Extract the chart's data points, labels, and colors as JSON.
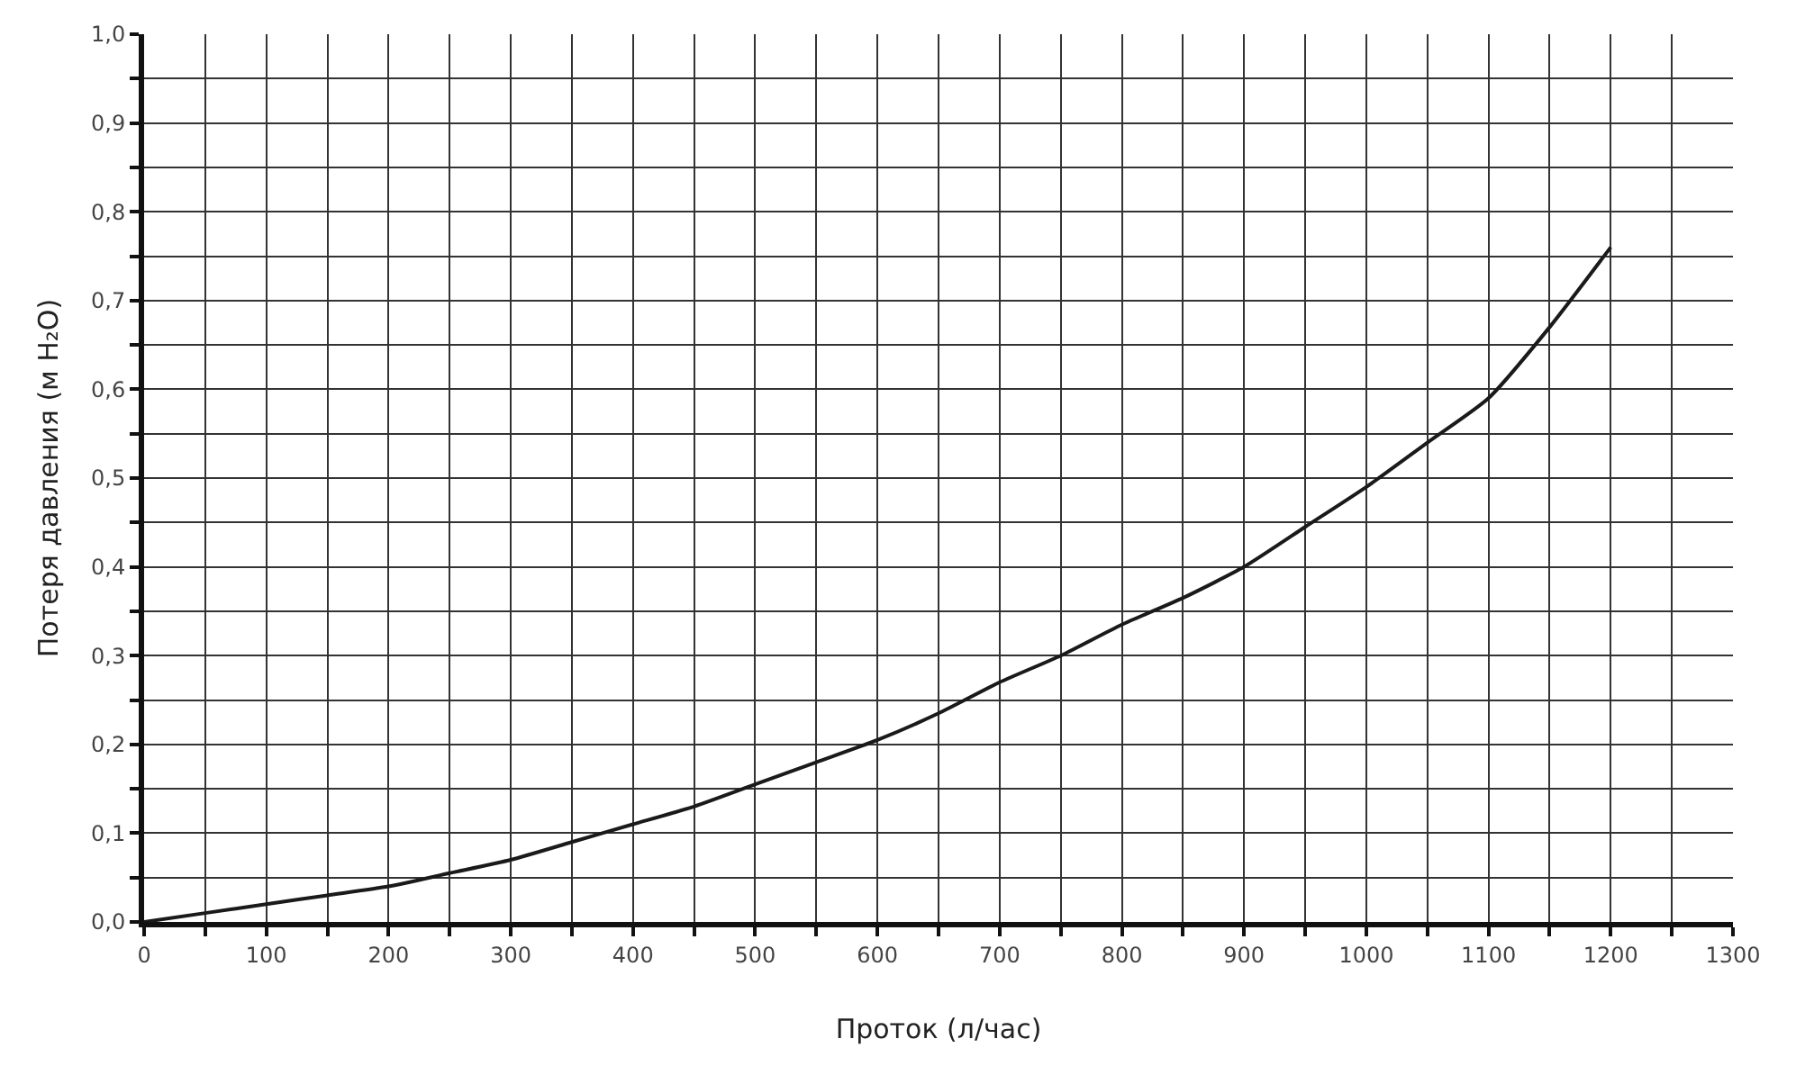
{
  "chart_data": {
    "type": "line",
    "xlabel": "Проток (л/час)",
    "ylabel": "Потеря давления (м H₂O)",
    "x": [
      0,
      50,
      100,
      150,
      200,
      250,
      300,
      350,
      400,
      450,
      500,
      550,
      600,
      650,
      700,
      750,
      800,
      850,
      900,
      950,
      1000,
      1050,
      1100,
      1150,
      1200
    ],
    "series": [
      {
        "color": "#1a1a1a",
        "values": [
          0,
          0.01,
          0.02,
          0.03,
          0.04,
          0.055,
          0.07,
          0.09,
          0.11,
          0.13,
          0.155,
          0.18,
          0.205,
          0.235,
          0.27,
          0.3,
          0.335,
          0.365,
          0.4,
          0.445,
          0.49,
          0.54,
          0.59,
          0.67,
          0.76
        ]
      }
    ],
    "xlim": [
      0,
      1300
    ],
    "xticks": [
      0,
      {
        "value": 50,
        "label": null
      },
      100,
      {
        "value": 150,
        "label": null
      },
      200,
      {
        "value": 250,
        "label": null
      },
      300,
      {
        "value": 350,
        "label": null
      },
      400,
      {
        "value": 450,
        "label": null
      },
      500,
      {
        "value": 550,
        "label": null
      },
      600,
      {
        "value": 650,
        "label": null
      },
      700,
      {
        "value": 750,
        "label": null
      },
      800,
      {
        "value": 850,
        "label": null
      },
      900,
      {
        "value": 950,
        "label": null
      },
      1000,
      {
        "value": 1050,
        "label": null
      },
      1100,
      {
        "value": 1150,
        "label": null
      },
      1200,
      {
        "value": 1250,
        "label": null
      },
      1300
    ],
    "ylim": [
      0,
      1.0
    ],
    "yticks": [
      {
        "value": 0,
        "label": "0,0"
      },
      {
        "value": 0.05,
        "label": null
      },
      {
        "value": 0.1,
        "label": "0,1"
      },
      {
        "value": 0.15,
        "label": null
      },
      {
        "value": 0.2,
        "label": "0,2"
      },
      {
        "value": 0.25,
        "label": null
      },
      {
        "value": 0.3,
        "label": "0,3"
      },
      {
        "value": 0.35,
        "label": null
      },
      {
        "value": 0.4,
        "label": "0,4"
      },
      {
        "value": 0.45,
        "label": null
      },
      {
        "value": 0.5,
        "label": "0,5"
      },
      {
        "value": 0.55,
        "label": null
      },
      {
        "value": 0.6,
        "label": "0,6"
      },
      {
        "value": 0.65,
        "label": null
      },
      {
        "value": 0.7,
        "label": "0,7"
      },
      {
        "value": 0.75,
        "label": null
      },
      {
        "value": 0.8,
        "label": "0,8"
      },
      {
        "value": 0.85,
        "label": null
      },
      {
        "value": 0.9,
        "label": "0,9"
      },
      {
        "value": 0.95,
        "label": null
      },
      {
        "value": 1.0,
        "label": "1,0"
      }
    ],
    "grid": true,
    "marker": "none",
    "line_style": "solid"
  }
}
